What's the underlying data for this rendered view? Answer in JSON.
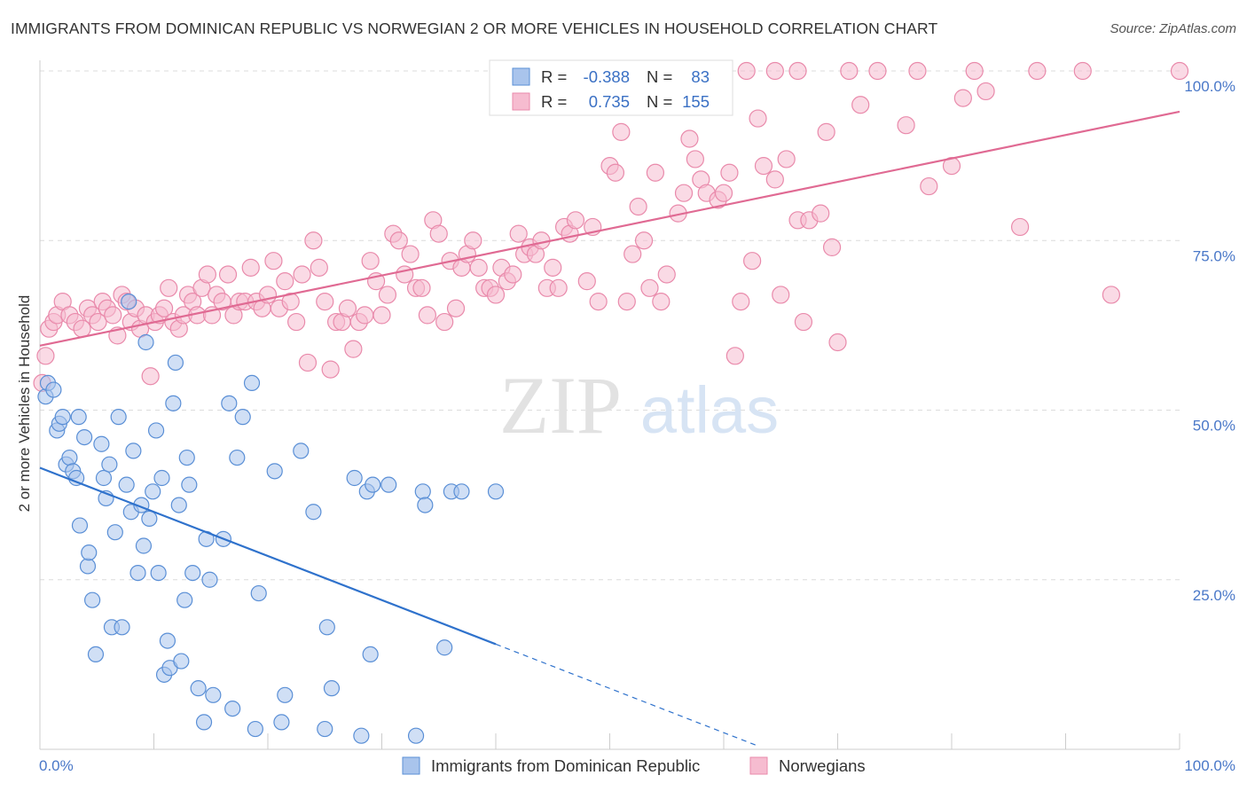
{
  "title": "IMMIGRANTS FROM DOMINICAN REPUBLIC VS NORWEGIAN 2 OR MORE VEHICLES IN HOUSEHOLD CORRELATION CHART",
  "source": "Source: ZipAtlas.com",
  "watermark": {
    "zip": "ZIP",
    "atlas": "atlas"
  },
  "colors": {
    "blue_fill": "#a9c4ec",
    "blue_stroke": "#5a8fd6",
    "blue_line": "#2f72cc",
    "pink_fill": "#f6bcd0",
    "pink_stroke": "#e98aab",
    "pink_line": "#e06a93",
    "tick_text": "#4a78c8",
    "grid": "#dcdcdc"
  },
  "legend": {
    "r_label": "R =",
    "n_label": "N =",
    "rows": [
      {
        "series": "blue",
        "r": "-0.388",
        "n": "83"
      },
      {
        "series": "pink",
        "r": "0.735",
        "n": "155"
      }
    ]
  },
  "bottom_legend": [
    {
      "series": "blue",
      "label": "Immigrants from Dominican Republic"
    },
    {
      "series": "pink",
      "label": "Norwegians"
    }
  ],
  "chart_data": {
    "type": "scatter",
    "title": "IMMIGRANTS FROM DOMINICAN REPUBLIC VS NORWEGIAN 2 OR MORE VEHICLES IN HOUSEHOLD CORRELATION CHART",
    "xlabel": "",
    "ylabel": "2 or more Vehicles in Household",
    "xlim": [
      0,
      100
    ],
    "ylim": [
      0,
      100
    ],
    "x_tick_labels": [
      {
        "value": 0,
        "label": "0.0%"
      },
      {
        "value": 100,
        "label": "100.0%"
      }
    ],
    "y_tick_labels": [
      {
        "value": 25,
        "label": "25.0%"
      },
      {
        "value": 50,
        "label": "50.0%"
      },
      {
        "value": 75,
        "label": "75.0%"
      },
      {
        "value": 100,
        "label": "100.0%"
      }
    ],
    "grid": true,
    "legend_position": "top-center",
    "series": [
      {
        "name": "Immigrants from Dominican Republic",
        "color": "blue",
        "r": -0.388,
        "n": 83,
        "trendline": {
          "x": [
            0,
            40
          ],
          "y": [
            41.5,
            15.5
          ],
          "dashed_to": [
            63,
            0.5
          ]
        },
        "points": [
          [
            0.5,
            52
          ],
          [
            0.7,
            54
          ],
          [
            1.2,
            53
          ],
          [
            1.5,
            47
          ],
          [
            1.7,
            48
          ],
          [
            2.0,
            49
          ],
          [
            2.3,
            42
          ],
          [
            2.6,
            43
          ],
          [
            2.9,
            41
          ],
          [
            3.2,
            40
          ],
          [
            3.4,
            49
          ],
          [
            3.5,
            33
          ],
          [
            3.9,
            46
          ],
          [
            4.2,
            27
          ],
          [
            4.3,
            29
          ],
          [
            4.6,
            22
          ],
          [
            4.9,
            14
          ],
          [
            5.4,
            45
          ],
          [
            5.6,
            40
          ],
          [
            5.8,
            37
          ],
          [
            6.1,
            42
          ],
          [
            6.3,
            18
          ],
          [
            6.6,
            32
          ],
          [
            6.9,
            49
          ],
          [
            7.2,
            18
          ],
          [
            7.6,
            39
          ],
          [
            7.8,
            66
          ],
          [
            8.0,
            35
          ],
          [
            8.2,
            44
          ],
          [
            8.6,
            26
          ],
          [
            8.9,
            36
          ],
          [
            9.1,
            30
          ],
          [
            9.3,
            60
          ],
          [
            9.6,
            34
          ],
          [
            9.9,
            38
          ],
          [
            10.2,
            47
          ],
          [
            10.4,
            26
          ],
          [
            10.7,
            40
          ],
          [
            10.9,
            11
          ],
          [
            11.2,
            16
          ],
          [
            11.4,
            12
          ],
          [
            11.7,
            51
          ],
          [
            11.9,
            57
          ],
          [
            12.2,
            36
          ],
          [
            12.4,
            13
          ],
          [
            12.7,
            22
          ],
          [
            12.9,
            43
          ],
          [
            13.1,
            39
          ],
          [
            13.4,
            26
          ],
          [
            13.9,
            9
          ],
          [
            14.4,
            4
          ],
          [
            14.6,
            31
          ],
          [
            14.9,
            25
          ],
          [
            15.2,
            8
          ],
          [
            16.1,
            31
          ],
          [
            16.6,
            51
          ],
          [
            16.9,
            6
          ],
          [
            17.3,
            43
          ],
          [
            17.8,
            49
          ],
          [
            18.6,
            54
          ],
          [
            18.9,
            3
          ],
          [
            19.2,
            23
          ],
          [
            20.6,
            41
          ],
          [
            21.2,
            4
          ],
          [
            21.5,
            8
          ],
          [
            22.9,
            44
          ],
          [
            24.0,
            35
          ],
          [
            25.0,
            3
          ],
          [
            25.2,
            18
          ],
          [
            25.6,
            9
          ],
          [
            27.6,
            40
          ],
          [
            28.2,
            2
          ],
          [
            28.7,
            38
          ],
          [
            29.0,
            14
          ],
          [
            29.2,
            39
          ],
          [
            30.6,
            39
          ],
          [
            33.0,
            2
          ],
          [
            33.6,
            38
          ],
          [
            33.8,
            36
          ],
          [
            35.5,
            15
          ],
          [
            36.1,
            38
          ],
          [
            37.0,
            38
          ],
          [
            40.0,
            38
          ]
        ]
      },
      {
        "name": "Norwegians",
        "color": "pink",
        "r": 0.735,
        "n": 155,
        "trendline": {
          "x": [
            0,
            100
          ],
          "y": [
            59.5,
            94
          ]
        },
        "points": [
          [
            0.2,
            54
          ],
          [
            0.5,
            58
          ],
          [
            0.8,
            62
          ],
          [
            1.2,
            63
          ],
          [
            1.5,
            64
          ],
          [
            2.0,
            66
          ],
          [
            2.6,
            64
          ],
          [
            3.1,
            63
          ],
          [
            3.7,
            62
          ],
          [
            4.2,
            65
          ],
          [
            4.6,
            64
          ],
          [
            5.1,
            63
          ],
          [
            5.5,
            66
          ],
          [
            5.9,
            65
          ],
          [
            6.4,
            64
          ],
          [
            6.8,
            61
          ],
          [
            7.2,
            67
          ],
          [
            7.6,
            66
          ],
          [
            8.0,
            63
          ],
          [
            8.4,
            65
          ],
          [
            8.8,
            62
          ],
          [
            9.3,
            64
          ],
          [
            9.7,
            55
          ],
          [
            10.1,
            63
          ],
          [
            10.5,
            64
          ],
          [
            10.9,
            65
          ],
          [
            11.3,
            68
          ],
          [
            11.7,
            63
          ],
          [
            12.2,
            62
          ],
          [
            12.6,
            64
          ],
          [
            13.0,
            67
          ],
          [
            13.4,
            66
          ],
          [
            13.8,
            64
          ],
          [
            14.2,
            68
          ],
          [
            14.7,
            70
          ],
          [
            15.1,
            64
          ],
          [
            15.5,
            67
          ],
          [
            16.0,
            66
          ],
          [
            16.5,
            70
          ],
          [
            17.0,
            64
          ],
          [
            17.5,
            66
          ],
          [
            18.0,
            66
          ],
          [
            18.5,
            71
          ],
          [
            19.0,
            66
          ],
          [
            19.5,
            65
          ],
          [
            20.0,
            67
          ],
          [
            20.5,
            72
          ],
          [
            21.0,
            65
          ],
          [
            21.5,
            69
          ],
          [
            22.0,
            66
          ],
          [
            22.5,
            63
          ],
          [
            23.0,
            70
          ],
          [
            23.5,
            57
          ],
          [
            24.0,
            75
          ],
          [
            24.5,
            71
          ],
          [
            25.0,
            66
          ],
          [
            25.5,
            56
          ],
          [
            26.0,
            63
          ],
          [
            26.5,
            63
          ],
          [
            27.0,
            65
          ],
          [
            27.5,
            59
          ],
          [
            28.0,
            63
          ],
          [
            28.5,
            64
          ],
          [
            29.0,
            72
          ],
          [
            29.5,
            69
          ],
          [
            30.0,
            64
          ],
          [
            30.5,
            67
          ],
          [
            31.0,
            76
          ],
          [
            31.5,
            75
          ],
          [
            32.0,
            70
          ],
          [
            32.5,
            73
          ],
          [
            33.0,
            68
          ],
          [
            33.5,
            68
          ],
          [
            34.0,
            64
          ],
          [
            34.5,
            78
          ],
          [
            35.0,
            76
          ],
          [
            35.5,
            63
          ],
          [
            36.0,
            72
          ],
          [
            36.5,
            65
          ],
          [
            37.0,
            71
          ],
          [
            37.5,
            73
          ],
          [
            38.0,
            75
          ],
          [
            38.5,
            71
          ],
          [
            39.0,
            68
          ],
          [
            39.5,
            68
          ],
          [
            40.0,
            67
          ],
          [
            40.5,
            71
          ],
          [
            41.0,
            69
          ],
          [
            41.5,
            70
          ],
          [
            42.0,
            76
          ],
          [
            42.5,
            73
          ],
          [
            43.0,
            74
          ],
          [
            43.5,
            73
          ],
          [
            44.0,
            75
          ],
          [
            44.5,
            68
          ],
          [
            45.0,
            71
          ],
          [
            45.5,
            68
          ],
          [
            46.0,
            77
          ],
          [
            46.5,
            76
          ],
          [
            47.0,
            78
          ],
          [
            48.0,
            69
          ],
          [
            48.5,
            77
          ],
          [
            49.0,
            66
          ],
          [
            50.0,
            86
          ],
          [
            50.5,
            85
          ],
          [
            51.0,
            91
          ],
          [
            51.5,
            66
          ],
          [
            52.0,
            73
          ],
          [
            52.5,
            80
          ],
          [
            53.0,
            75
          ],
          [
            53.5,
            68
          ],
          [
            54.0,
            85
          ],
          [
            54.5,
            66
          ],
          [
            55.0,
            70
          ],
          [
            56.0,
            79
          ],
          [
            56.5,
            82
          ],
          [
            57.0,
            90
          ],
          [
            57.5,
            87
          ],
          [
            58.0,
            84
          ],
          [
            58.5,
            82
          ],
          [
            59.5,
            81
          ],
          [
            60.0,
            82
          ],
          [
            60.5,
            85
          ],
          [
            61.0,
            58
          ],
          [
            61.5,
            66
          ],
          [
            62.5,
            72
          ],
          [
            63.0,
            93
          ],
          [
            63.5,
            86
          ],
          [
            64.5,
            84
          ],
          [
            65.0,
            67
          ],
          [
            65.5,
            87
          ],
          [
            66.5,
            78
          ],
          [
            67.0,
            63
          ],
          [
            67.5,
            78
          ],
          [
            68.5,
            79
          ],
          [
            69.0,
            91
          ],
          [
            69.5,
            74
          ],
          [
            70.0,
            60
          ],
          [
            72.0,
            95
          ],
          [
            76.0,
            92
          ],
          [
            78.0,
            83
          ],
          [
            80.0,
            86
          ],
          [
            81.0,
            96
          ],
          [
            83.0,
            97
          ],
          [
            86.0,
            77
          ],
          [
            94.0,
            67
          ],
          [
            60.0,
            100
          ],
          [
            62.0,
            100
          ],
          [
            64.5,
            100
          ],
          [
            66.5,
            100
          ],
          [
            71.0,
            100
          ],
          [
            73.5,
            100
          ],
          [
            77.0,
            100
          ],
          [
            82.0,
            100
          ],
          [
            87.5,
            100
          ],
          [
            91.5,
            100
          ],
          [
            100.0,
            100
          ]
        ]
      }
    ]
  }
}
